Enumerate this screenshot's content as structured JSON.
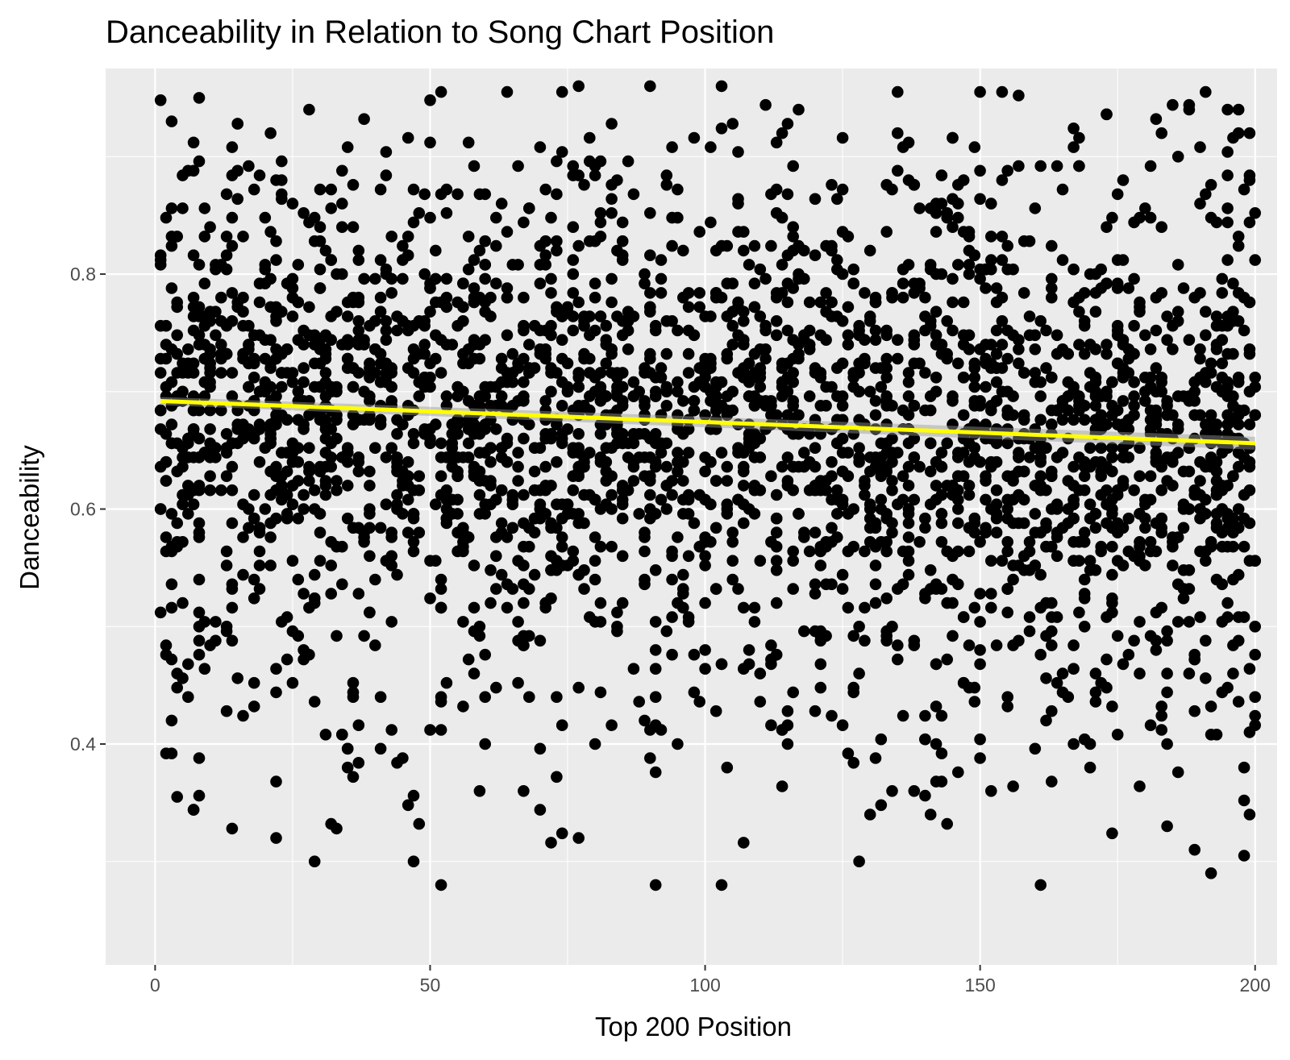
{
  "chart_data": {
    "type": "scatter",
    "title": "Danceability in Relation to Song Chart Position",
    "xlabel": "Top 200 Position",
    "ylabel": "Danceability",
    "xlim": [
      -9,
      204
    ],
    "ylim": [
      0.212,
      0.975
    ],
    "x_ticks": [
      0,
      50,
      100,
      150,
      200
    ],
    "x_tick_labels": [
      "0",
      "50",
      "100",
      "150",
      "200"
    ],
    "y_ticks": [
      0.4,
      0.6,
      0.8
    ],
    "y_tick_labels": [
      "0.4",
      "0.6",
      "0.8"
    ],
    "grid": true,
    "legend": "none",
    "point_count": 3000,
    "point_color": "#000000",
    "panel_color": "#ebebeb",
    "grid_color": "#ffffff",
    "trend_line": {
      "method": "linear fit",
      "color": "#ffff00",
      "start": {
        "x": 1,
        "y": 0.692
      },
      "end": {
        "x": 200,
        "y": 0.656
      }
    },
    "highlighted_points": [
      {
        "x": 3,
        "y": 0.93
      },
      {
        "x": 8,
        "y": 0.95
      },
      {
        "x": 77,
        "y": 0.96
      },
      {
        "x": 90,
        "y": 0.96
      },
      {
        "x": 103,
        "y": 0.96
      },
      {
        "x": 188,
        "y": 0.94
      },
      {
        "x": 199,
        "y": 0.92
      },
      {
        "x": 4,
        "y": 0.355
      },
      {
        "x": 22,
        "y": 0.32
      },
      {
        "x": 52,
        "y": 0.28
      },
      {
        "x": 91,
        "y": 0.28
      },
      {
        "x": 103,
        "y": 0.28
      },
      {
        "x": 161,
        "y": 0.28
      },
      {
        "x": 192,
        "y": 0.29
      },
      {
        "x": 198,
        "y": 0.305
      },
      {
        "x": 189,
        "y": 0.31
      },
      {
        "x": 199,
        "y": 0.34
      },
      {
        "x": 184,
        "y": 0.33
      },
      {
        "x": 199,
        "y": 0.41
      },
      {
        "x": 77,
        "y": 0.32
      }
    ]
  }
}
